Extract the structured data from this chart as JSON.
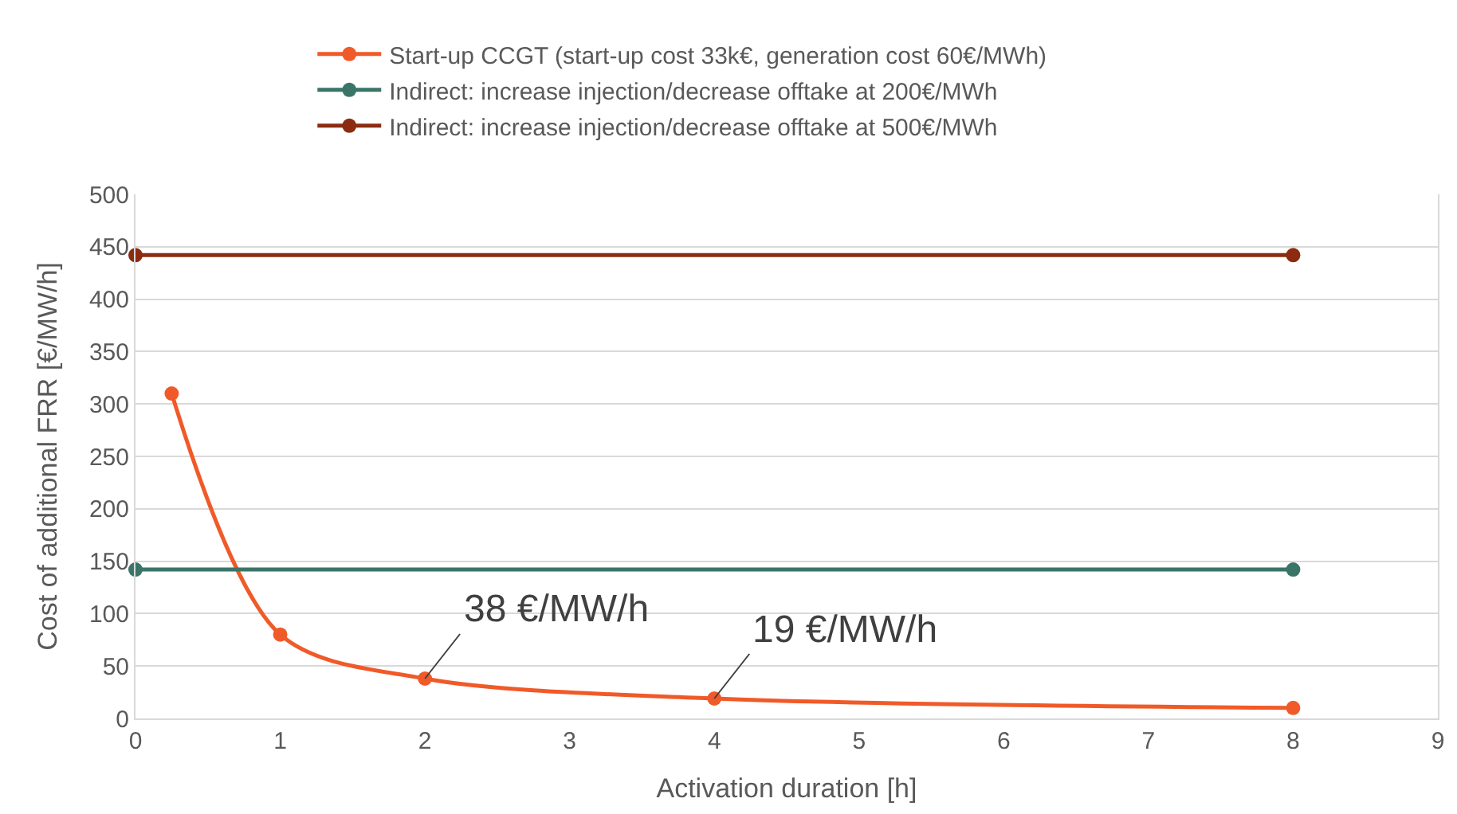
{
  "chart_data": {
    "type": "line",
    "xlabel": "Activation duration [h]",
    "ylabel": "Cost of additional FRR [€/MW/h]",
    "xlim": [
      0,
      9
    ],
    "xticks": [
      0,
      1,
      2,
      3,
      4,
      5,
      6,
      7,
      8,
      9
    ],
    "ylim": [
      0,
      500
    ],
    "yticks": [
      0,
      50,
      100,
      150,
      200,
      250,
      300,
      350,
      400,
      450,
      500
    ],
    "grid": "y",
    "legend": "top",
    "marker": "circle",
    "line_style": "solid",
    "series": [
      {
        "name": "Start-up CCGT (start-up cost 33k€, generation cost 60€/MWh)",
        "color": "#f05a28",
        "x": [
          0.25,
          1,
          2,
          4,
          8
        ],
        "values": [
          310,
          80,
          38,
          19,
          10
        ]
      },
      {
        "name": "Indirect: increase injection/decrease offtake at 200€/MWh",
        "color": "#3a7568",
        "x": [
          0,
          8
        ],
        "values": [
          142,
          142
        ]
      },
      {
        "name": "Indirect: increase injection/decrease offtake at 500€/MWh",
        "color": "#8b2c10",
        "x": [
          0,
          8
        ],
        "values": [
          442,
          442
        ]
      }
    ],
    "annotations": [
      {
        "text": "38 €/MW/h",
        "x": 2,
        "y": 38
      },
      {
        "text": "19 €/MW/h",
        "x": 4,
        "y": 19
      }
    ]
  }
}
